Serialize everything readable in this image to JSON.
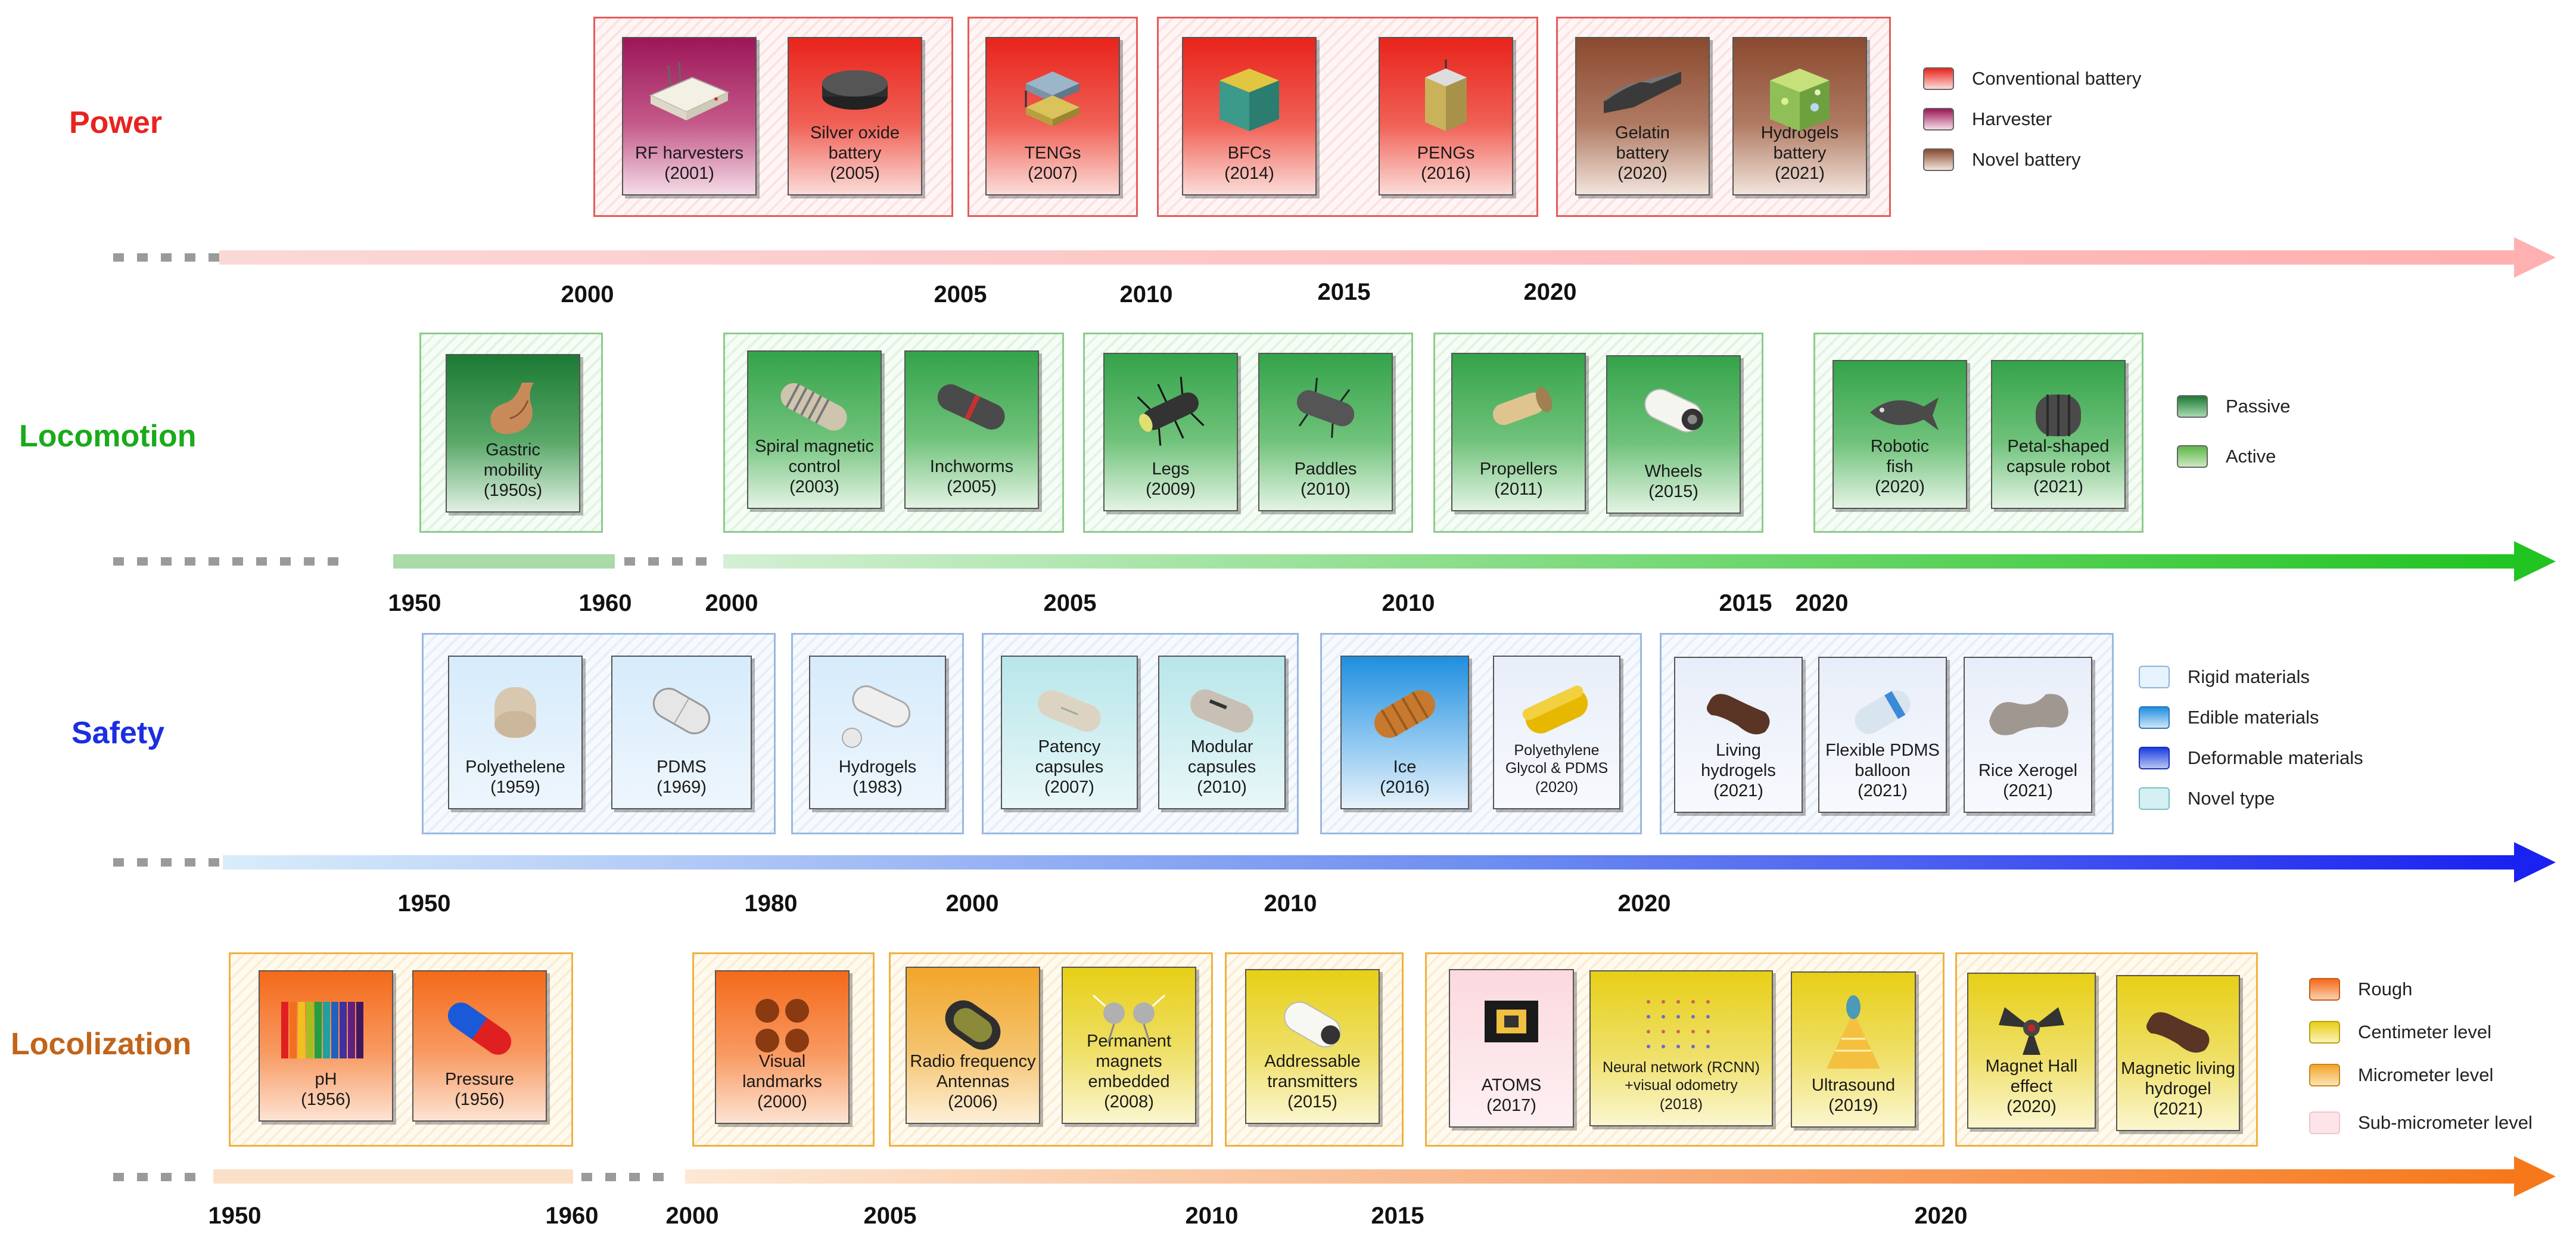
{
  "sections": {
    "power": {
      "label": "Power",
      "color": "#e8231f"
    },
    "locomotion": {
      "label": "Locomotion",
      "color": "#1aaa1a"
    },
    "safety": {
      "label": "Safety",
      "color": "#1b2ee0"
    },
    "localization": {
      "label": "Locolization",
      "color": "#c2641a"
    }
  },
  "years": {
    "power": [
      "2000",
      "2005",
      "2010",
      "2015",
      "2020"
    ],
    "locomotion": [
      "1950",
      "1960",
      "2000",
      "2005",
      "2010",
      "2015",
      "2020"
    ],
    "safety": [
      "1950",
      "1980",
      "2000",
      "2010",
      "2020"
    ],
    "localization": [
      "1950",
      "1960",
      "2000",
      "2005",
      "2010",
      "2015",
      "2020"
    ]
  },
  "power_cards": [
    {
      "name": "RF harvesters",
      "year": "(2001)",
      "icon": "router-icon"
    },
    {
      "name": "Silver oxide\nbattery",
      "year": "(2005)",
      "icon": "coin-cell-icon"
    },
    {
      "name": "TENGs",
      "year": "(2007)",
      "icon": "teng-icon"
    },
    {
      "name": "BFCs",
      "year": "(2014)",
      "icon": "bfc-cube-icon"
    },
    {
      "name": "PENGs",
      "year": "(2016)",
      "icon": "peng-icon"
    },
    {
      "name": "Gelatin\nbattery",
      "year": "(2020)",
      "icon": "gelatin-film-icon"
    },
    {
      "name": "Hydrogels\nbattery",
      "year": "(2021)",
      "icon": "hydrogel-cube-icon"
    }
  ],
  "locomotion_cards": [
    {
      "name": "Gastric\nmobility",
      "year": "(1950s)",
      "icon": "stomach-icon"
    },
    {
      "name": "Spiral magnetic\ncontrol",
      "year": "(2003)",
      "icon": "spiral-capsule-icon"
    },
    {
      "name": "Inchworms",
      "year": "(2005)",
      "icon": "inchworm-capsule-icon"
    },
    {
      "name": "Legs",
      "year": "(2009)",
      "icon": "legged-capsule-icon"
    },
    {
      "name": "Paddles",
      "year": "(2010)",
      "icon": "paddle-capsule-icon"
    },
    {
      "name": "Propellers",
      "year": "(2011)",
      "icon": "propeller-capsule-icon"
    },
    {
      "name": "Wheels",
      "year": "(2015)",
      "icon": "wheeled-capsule-icon"
    },
    {
      "name": "Robotic\nfish",
      "year": "(2020)",
      "icon": "robotic-fish-icon"
    },
    {
      "name": "Petal-shaped\ncapsule robot",
      "year": "(2021)",
      "icon": "petal-capsule-icon"
    }
  ],
  "safety_cards": [
    {
      "name": "Polyethelene",
      "year": "(1959)",
      "icon": "beige-capsule-icon"
    },
    {
      "name": "PDMS",
      "year": "(1969)",
      "icon": "clear-capsule-icon"
    },
    {
      "name": "Hydrogels",
      "year": "(1983)",
      "icon": "hydrogel-capsule-icon"
    },
    {
      "name": "Patency\ncapsules",
      "year": "(2007)",
      "icon": "patency-capsule-icon"
    },
    {
      "name": "Modular\ncapsules",
      "year": "(2010)",
      "icon": "modular-capsule-icon"
    },
    {
      "name": "Ice",
      "year": "(2016)",
      "icon": "ice-capsule-icon"
    },
    {
      "name": "Polyethylene\nGlycol & PDMS",
      "year": "(2020)",
      "icon": "yellow-capsule-icon"
    },
    {
      "name": "Living\nhydrogels",
      "year": "(2021)",
      "icon": "living-hydrogel-icon"
    },
    {
      "name": "Flexible PDMS\nballoon",
      "year": "(2021)",
      "icon": "balloon-capsule-icon"
    },
    {
      "name": "Rice Xerogel",
      "year": "(2021)",
      "icon": "rice-xerogel-icon"
    }
  ],
  "localization_cards": [
    {
      "name": "pH",
      "year": "(1956)",
      "icon": "ph-strip-icon"
    },
    {
      "name": "Pressure",
      "year": "(1956)",
      "icon": "pill-capsule-icon"
    },
    {
      "name": "Visual\nlandmarks",
      "year": "(2000)",
      "icon": "landmarks-icon"
    },
    {
      "name": "Radio frequency\nAntennas",
      "year": "(2006)",
      "icon": "antenna-capsule-icon"
    },
    {
      "name": "Permanent\nmagnets\nembedded",
      "year": "(2008)",
      "icon": "magnets-icon"
    },
    {
      "name": "Addressable\ntransmitters",
      "year": "(2015)",
      "icon": "transmitter-capsule-icon"
    },
    {
      "name": "ATOMS",
      "year": "(2017)",
      "icon": "chip-icon"
    },
    {
      "name": "Neural network (RCNN)\n+visual odometry",
      "year": "(2018)",
      "icon": "dot-grid-icon"
    },
    {
      "name": "Ultrasound",
      "year": "(2019)",
      "icon": "ultrasound-icon"
    },
    {
      "name": "Magnet Hall\neffect",
      "year": "(2020)",
      "icon": "hall-effect-icon"
    },
    {
      "name": "Magnetic living\nhydrogel",
      "year": "(2021)",
      "icon": "magnetic-hydrogel-icon"
    }
  ],
  "legends": {
    "power": [
      {
        "label": "Conventional battery",
        "color": "#e8241c"
      },
      {
        "label": "Harvester",
        "color": "#9c1658"
      },
      {
        "label": "Novel battery",
        "color": "#8a4a30"
      }
    ],
    "locomotion": [
      {
        "label": "Passive",
        "color": "#1c7a34"
      },
      {
        "label": "Active",
        "color": "#5cb84a"
      }
    ],
    "safety": [
      {
        "label": "Rigid materials",
        "color": "#d6ebfb"
      },
      {
        "label": "Edible materials",
        "color": "#1f8fe0"
      },
      {
        "label": "Deformable materials",
        "color": "#1b3ee0"
      },
      {
        "label": "Novel type",
        "color": "#b7e6ea"
      }
    ],
    "localization": [
      {
        "label": "Rough",
        "color": "#f46a1a"
      },
      {
        "label": "Centimeter level",
        "color": "#e7cf16"
      },
      {
        "label": "Micrometer level",
        "color": "#f2a62a"
      },
      {
        "label": "Sub-micrometer level",
        "color": "#fcd9de"
      }
    ]
  }
}
